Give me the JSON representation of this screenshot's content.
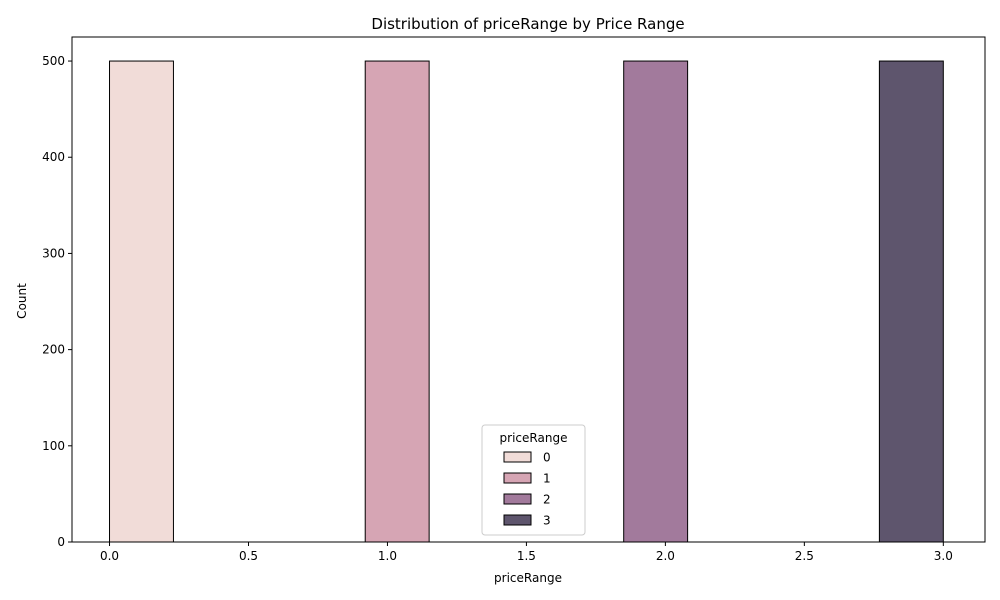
{
  "chart_data": {
    "type": "bar",
    "title": "Distribution of priceRange by Price Range",
    "xlabel": "priceRange",
    "ylabel": "Count",
    "xlim": [
      -0.135,
      3.15
    ],
    "ylim": [
      0,
      525
    ],
    "xticks": [
      0.0,
      0.5,
      1.0,
      1.5,
      2.0,
      2.5,
      3.0
    ],
    "xtick_labels": [
      "0.0",
      "0.5",
      "1.0",
      "1.5",
      "2.0",
      "2.5",
      "3.0"
    ],
    "yticks": [
      0,
      100,
      200,
      300,
      400,
      500
    ],
    "ytick_labels": [
      "0",
      "100",
      "200",
      "300",
      "400",
      "500"
    ],
    "bin_width": 0.23,
    "series": [
      {
        "name": "0",
        "color": "#f1dcd8",
        "bars": [
          {
            "x0": 0.0,
            "x1": 0.23,
            "value": 500
          }
        ]
      },
      {
        "name": "1",
        "color": "#d6a5b4",
        "bars": [
          {
            "x0": 0.92,
            "x1": 1.15,
            "value": 500
          }
        ]
      },
      {
        "name": "2",
        "color": "#a27a9c",
        "bars": [
          {
            "x0": 1.85,
            "x1": 2.08,
            "value": 500
          }
        ]
      },
      {
        "name": "3",
        "color": "#5e556d",
        "bars": [
          {
            "x0": 2.77,
            "x1": 3.0,
            "value": 500
          }
        ]
      }
    ],
    "zero_bars": [
      {
        "x0": 0.23,
        "x1": 0.92,
        "value": 0
      },
      {
        "x0": 1.15,
        "x1": 1.85,
        "value": 0
      },
      {
        "x0": 2.08,
        "x1": 2.77,
        "value": 0
      }
    ],
    "legend": {
      "title": "priceRange",
      "placement": "lower-center",
      "entries": [
        "0",
        "1",
        "2",
        "3"
      ]
    },
    "grid": false
  }
}
